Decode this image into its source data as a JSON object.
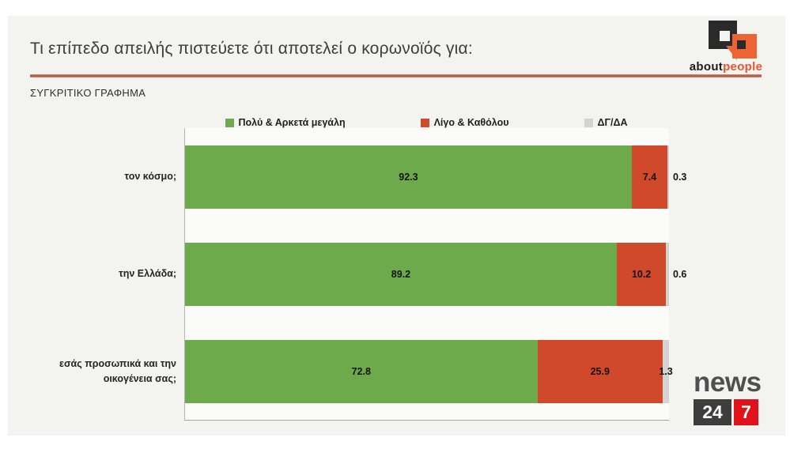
{
  "header": {
    "title": "Τι επίπεδο απειλής πιστεύετε ότι αποτελεί ο κορωνοϊός για:",
    "subtitle": "ΣΥΓΚΡΙΤΙΚΟ ΓΡΑΦΗΜΑ"
  },
  "branding": {
    "about_black": "about",
    "about_orange": "people",
    "news_word": "news",
    "news_24": "24",
    "news_7": "7"
  },
  "colors": {
    "panel_background": "#f3f3f0",
    "plot_background": "#fbfbf9",
    "divider": "#a6503a",
    "green": "#6caa4b",
    "red": "#d1492b",
    "gray": "#d3d3d1",
    "about_orange": "#ec6434",
    "news_red": "#e2121b",
    "news_dark": "#3d3d3d"
  },
  "chart_data": {
    "type": "bar",
    "orientation": "horizontal",
    "stacked": true,
    "title": "Τι επίπεδο απειλής πιστεύετε ότι αποτελεί ο κορωνοϊός για:",
    "subtitle": "ΣΥΓΚΡΙΤΙΚΟ ΓΡΑΦΗΜΑ",
    "categories": [
      "τον κόσμο;",
      "την Ελλάδα;",
      "εσάς προσωπικά και την οικογένεια σας;"
    ],
    "series": [
      {
        "name": "Πολύ & Αρκετά μεγάλη",
        "color": "#6caa4b",
        "values": [
          92.3,
          89.2,
          72.8
        ]
      },
      {
        "name": "Λίγο & Καθόλου",
        "color": "#d1492b",
        "values": [
          7.4,
          10.2,
          25.9
        ]
      },
      {
        "name": "ΔΓ/ΔΑ",
        "color": "#d3d3d1",
        "values": [
          0.3,
          0.6,
          1.3
        ]
      }
    ],
    "xlim": [
      0,
      100
    ],
    "legend_position": "top",
    "grid": false,
    "value_labels": true
  }
}
